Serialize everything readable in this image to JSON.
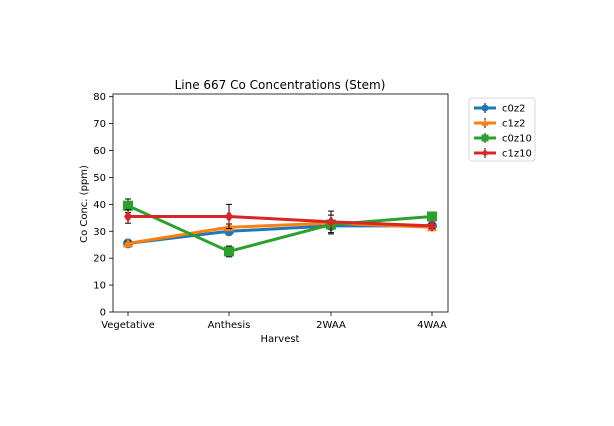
{
  "chart_data": {
    "type": "line",
    "title": "Line 667 Co Concentrations (Stem)",
    "xlabel": "Harvest",
    "ylabel": "Co Conc. (ppm)",
    "categories": [
      "Vegetative",
      "Anthesis",
      "2WAA",
      "4WAA"
    ],
    "ylim": [
      0,
      81
    ],
    "yticks": [
      0,
      10,
      20,
      30,
      40,
      50,
      60,
      70,
      80
    ],
    "grid": false,
    "legend_position": "outside-top-right",
    "series": [
      {
        "name": "c0z2",
        "color": "#1f77b4",
        "marker": "circle",
        "values": [
          25.5,
          30.0,
          32.0,
          32.0
        ],
        "errors": [
          1.0,
          1.0,
          1.0,
          0.5
        ]
      },
      {
        "name": "c1z2",
        "color": "#ff7f0e",
        "marker": "triangle",
        "values": [
          25.5,
          31.5,
          33.0,
          31.5
        ],
        "errors": [
          0.8,
          1.2,
          1.0,
          0.8
        ]
      },
      {
        "name": "c0z10",
        "color": "#2ca02c",
        "marker": "square",
        "values": [
          39.5,
          22.5,
          32.5,
          35.5
        ],
        "errors": [
          2.5,
          2.0,
          3.5,
          1.0
        ]
      },
      {
        "name": "c1z10",
        "color": "#d62728",
        "marker": "diamond",
        "values": [
          35.5,
          35.5,
          33.5,
          32.0
        ],
        "errors": [
          2.5,
          4.5,
          4.0,
          1.0
        ]
      }
    ]
  }
}
